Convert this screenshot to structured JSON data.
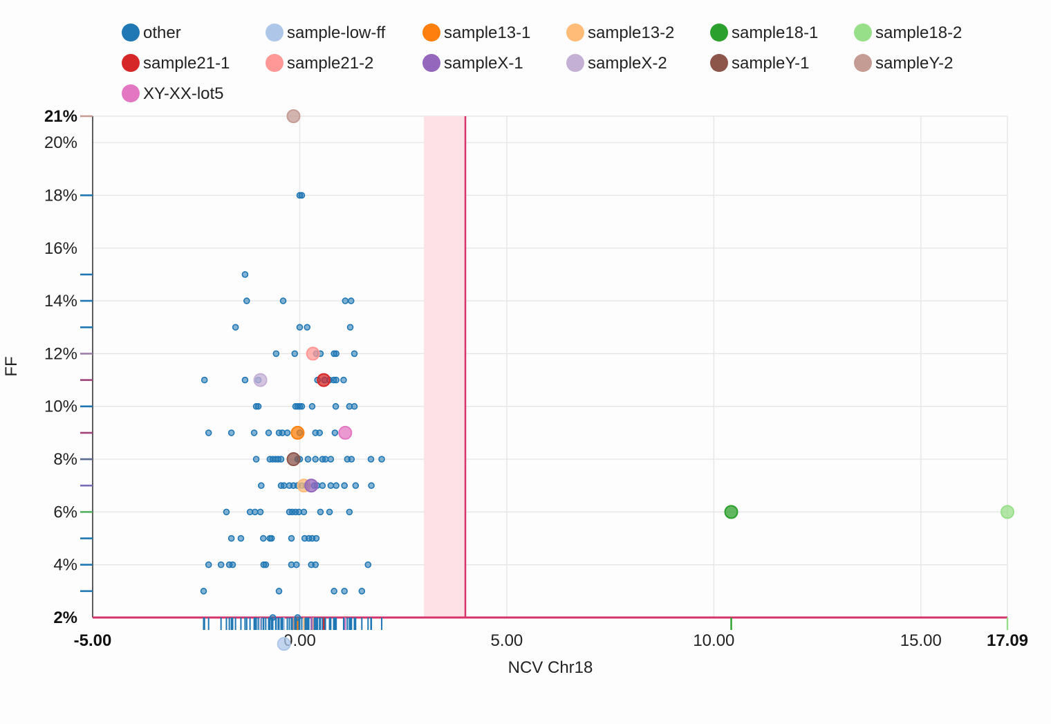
{
  "chart_data": {
    "type": "scatter",
    "xlabel": "NCV Chr18",
    "ylabel": "FF",
    "xlim": [
      -5.0,
      17.09
    ],
    "ylim": [
      2,
      21
    ],
    "x_ticks": [
      "-5.00",
      "0.00",
      "5.00",
      "10.00",
      "15.00",
      "17.09"
    ],
    "x_tick_values": [
      -5.0,
      0.0,
      5.0,
      10.0,
      15.0,
      17.09
    ],
    "x_tick_bold": [
      true,
      false,
      false,
      false,
      false,
      true
    ],
    "y_ticks": [
      "2%",
      "4%",
      "6%",
      "8%",
      "10%",
      "12%",
      "14%",
      "16%",
      "18%",
      "20%",
      "21%"
    ],
    "y_tick_values": [
      2,
      4,
      6,
      8,
      10,
      12,
      14,
      16,
      18,
      20,
      21
    ],
    "y_tick_bold": [
      true,
      false,
      false,
      false,
      false,
      false,
      false,
      false,
      false,
      false,
      true
    ],
    "grid": true,
    "legend_position": "top",
    "threshold": {
      "x": 4.0,
      "band": [
        3.0,
        4.0
      ],
      "color": "#d6336c",
      "band_color": "#fde1e6"
    },
    "legend": [
      {
        "name": "other",
        "color": "#1f77b4"
      },
      {
        "name": "sample-low-ff",
        "color": "#aec7e8"
      },
      {
        "name": "sample13-1",
        "color": "#ff7f0e"
      },
      {
        "name": "sample13-2",
        "color": "#ffbb78"
      },
      {
        "name": "sample18-1",
        "color": "#2ca02c"
      },
      {
        "name": "sample18-2",
        "color": "#98df8a"
      },
      {
        "name": "sample21-1",
        "color": "#d62728"
      },
      {
        "name": "sample21-2",
        "color": "#ff9896"
      },
      {
        "name": "sampleX-1",
        "color": "#9467bd"
      },
      {
        "name": "sampleX-2",
        "color": "#c5b0d5"
      },
      {
        "name": "sampleY-1",
        "color": "#8c564b"
      },
      {
        "name": "sampleY-2",
        "color": "#c49c94"
      },
      {
        "name": "XY-XX-lot5",
        "color": "#e377c2"
      }
    ],
    "series": [
      {
        "name": "other",
        "color": "#1f77b4",
        "points": [
          [
            0.0,
            18
          ],
          [
            0.05,
            18
          ],
          [
            -1.32,
            15
          ],
          [
            -1.28,
            14
          ],
          [
            -0.4,
            14
          ],
          [
            1.1,
            14
          ],
          [
            1.24,
            14
          ],
          [
            -1.55,
            13
          ],
          [
            0.0,
            13
          ],
          [
            0.18,
            13
          ],
          [
            1.22,
            13
          ],
          [
            -0.57,
            12
          ],
          [
            -0.12,
            12
          ],
          [
            0.4,
            12
          ],
          [
            0.5,
            12
          ],
          [
            0.83,
            12
          ],
          [
            0.88,
            12
          ],
          [
            1.32,
            12
          ],
          [
            -2.3,
            11
          ],
          [
            -1.32,
            11
          ],
          [
            -1.0,
            11
          ],
          [
            0.43,
            11
          ],
          [
            0.6,
            11
          ],
          [
            0.72,
            11
          ],
          [
            0.82,
            11
          ],
          [
            0.88,
            11
          ],
          [
            1.06,
            11
          ],
          [
            -1.05,
            10
          ],
          [
            -1.0,
            10
          ],
          [
            -0.1,
            10
          ],
          [
            -0.05,
            10
          ],
          [
            0.0,
            10
          ],
          [
            0.05,
            10
          ],
          [
            0.3,
            10
          ],
          [
            0.87,
            10
          ],
          [
            1.2,
            10
          ],
          [
            1.32,
            10
          ],
          [
            -2.2,
            9
          ],
          [
            -1.65,
            9
          ],
          [
            -1.1,
            9
          ],
          [
            -0.75,
            9
          ],
          [
            -0.5,
            9
          ],
          [
            -0.42,
            9
          ],
          [
            -0.3,
            9
          ],
          [
            0.0,
            9
          ],
          [
            0.38,
            9
          ],
          [
            0.48,
            9
          ],
          [
            0.85,
            9
          ],
          [
            -1.05,
            8
          ],
          [
            -0.72,
            8
          ],
          [
            -0.65,
            8
          ],
          [
            -0.58,
            8
          ],
          [
            -0.52,
            8
          ],
          [
            -0.45,
            8
          ],
          [
            -0.05,
            8
          ],
          [
            0.0,
            8
          ],
          [
            0.2,
            8
          ],
          [
            0.38,
            8
          ],
          [
            0.55,
            8
          ],
          [
            0.62,
            8
          ],
          [
            0.75,
            8
          ],
          [
            1.15,
            8
          ],
          [
            1.25,
            8
          ],
          [
            1.72,
            8
          ],
          [
            1.98,
            8
          ],
          [
            -0.93,
            7
          ],
          [
            -0.45,
            7
          ],
          [
            -0.38,
            7
          ],
          [
            -0.25,
            7
          ],
          [
            -0.15,
            7
          ],
          [
            -0.05,
            7
          ],
          [
            0.05,
            7
          ],
          [
            0.15,
            7
          ],
          [
            0.35,
            7
          ],
          [
            0.42,
            7
          ],
          [
            0.55,
            7
          ],
          [
            0.75,
            7
          ],
          [
            0.88,
            7
          ],
          [
            1.08,
            7
          ],
          [
            1.35,
            7
          ],
          [
            1.73,
            7
          ],
          [
            -1.77,
            6
          ],
          [
            -1.2,
            6
          ],
          [
            -1.08,
            6
          ],
          [
            -0.95,
            6
          ],
          [
            -0.25,
            6
          ],
          [
            -0.18,
            6
          ],
          [
            -0.1,
            6
          ],
          [
            -0.02,
            6
          ],
          [
            0.1,
            6
          ],
          [
            0.5,
            6
          ],
          [
            0.72,
            6
          ],
          [
            1.2,
            6
          ],
          [
            -1.65,
            5
          ],
          [
            -1.42,
            5
          ],
          [
            -0.88,
            5
          ],
          [
            -0.72,
            5
          ],
          [
            -0.68,
            5
          ],
          [
            -0.2,
            5
          ],
          [
            0.12,
            5
          ],
          [
            0.22,
            5
          ],
          [
            0.3,
            5
          ],
          [
            0.4,
            5
          ],
          [
            -2.2,
            4
          ],
          [
            -1.9,
            4
          ],
          [
            -1.7,
            4
          ],
          [
            -1.62,
            4
          ],
          [
            -0.87,
            4
          ],
          [
            -0.82,
            4
          ],
          [
            -0.2,
            4
          ],
          [
            -0.08,
            4
          ],
          [
            0.28,
            4
          ],
          [
            0.38,
            4
          ],
          [
            1.65,
            4
          ],
          [
            -2.32,
            3
          ],
          [
            -0.5,
            3
          ],
          [
            0.83,
            3
          ],
          [
            1.08,
            3
          ],
          [
            1.5,
            3
          ],
          [
            -0.65,
            2
          ],
          [
            -0.05,
            2
          ]
        ]
      },
      {
        "name": "sample-low-ff",
        "color": "#aec7e8",
        "points": [
          [
            -0.38,
            1
          ]
        ]
      },
      {
        "name": "sample13-1",
        "color": "#ff7f0e",
        "points": [
          [
            -0.05,
            9
          ]
        ]
      },
      {
        "name": "sample13-2",
        "color": "#ffbb78",
        "points": [
          [
            0.1,
            7
          ]
        ]
      },
      {
        "name": "sample18-1",
        "color": "#2ca02c",
        "points": [
          [
            10.42,
            6
          ]
        ]
      },
      {
        "name": "sample18-2",
        "color": "#98df8a",
        "points": [
          [
            17.09,
            6
          ]
        ]
      },
      {
        "name": "sample21-1",
        "color": "#d62728",
        "points": [
          [
            0.58,
            11
          ]
        ]
      },
      {
        "name": "sample21-2",
        "color": "#ff9896",
        "points": [
          [
            0.32,
            12
          ]
        ]
      },
      {
        "name": "sampleX-1",
        "color": "#9467bd",
        "points": [
          [
            0.28,
            7
          ]
        ]
      },
      {
        "name": "sampleX-2",
        "color": "#c5b0d5",
        "points": [
          [
            -0.95,
            11
          ]
        ]
      },
      {
        "name": "sampleY-1",
        "color": "#8c564b",
        "points": [
          [
            -0.15,
            8
          ]
        ]
      },
      {
        "name": "sampleY-2",
        "color": "#c49c94",
        "points": [
          [
            -0.15,
            21
          ]
        ]
      },
      {
        "name": "XY-XX-lot5",
        "color": "#e377c2",
        "points": [
          [
            1.1,
            9
          ]
        ]
      }
    ],
    "y_rug": [
      {
        "y": 21,
        "color": "#c49c94"
      },
      {
        "y": 18,
        "color": "#1f77b4"
      },
      {
        "y": 15,
        "color": "#1f77b4"
      },
      {
        "y": 14,
        "color": "#1f77b4"
      },
      {
        "y": 13,
        "color": "#1f77b4"
      },
      {
        "y": 12,
        "color": "#9e7fa8"
      },
      {
        "y": 11,
        "color": "#a0457a"
      },
      {
        "y": 10,
        "color": "#1f77b4"
      },
      {
        "y": 9,
        "color": "#a0457a"
      },
      {
        "y": 8,
        "color": "#5a6b8f"
      },
      {
        "y": 7,
        "color": "#7a6bb8"
      },
      {
        "y": 6,
        "color": "#4fae5e"
      },
      {
        "y": 5,
        "color": "#1f77b4"
      },
      {
        "y": 4,
        "color": "#1f77b4"
      },
      {
        "y": 3,
        "color": "#1f77b4"
      }
    ],
    "x_rug_extra": [
      {
        "x": 10.42,
        "color": "#2ca02c"
      },
      {
        "x": 17.09,
        "color": "#98df8a"
      }
    ]
  }
}
